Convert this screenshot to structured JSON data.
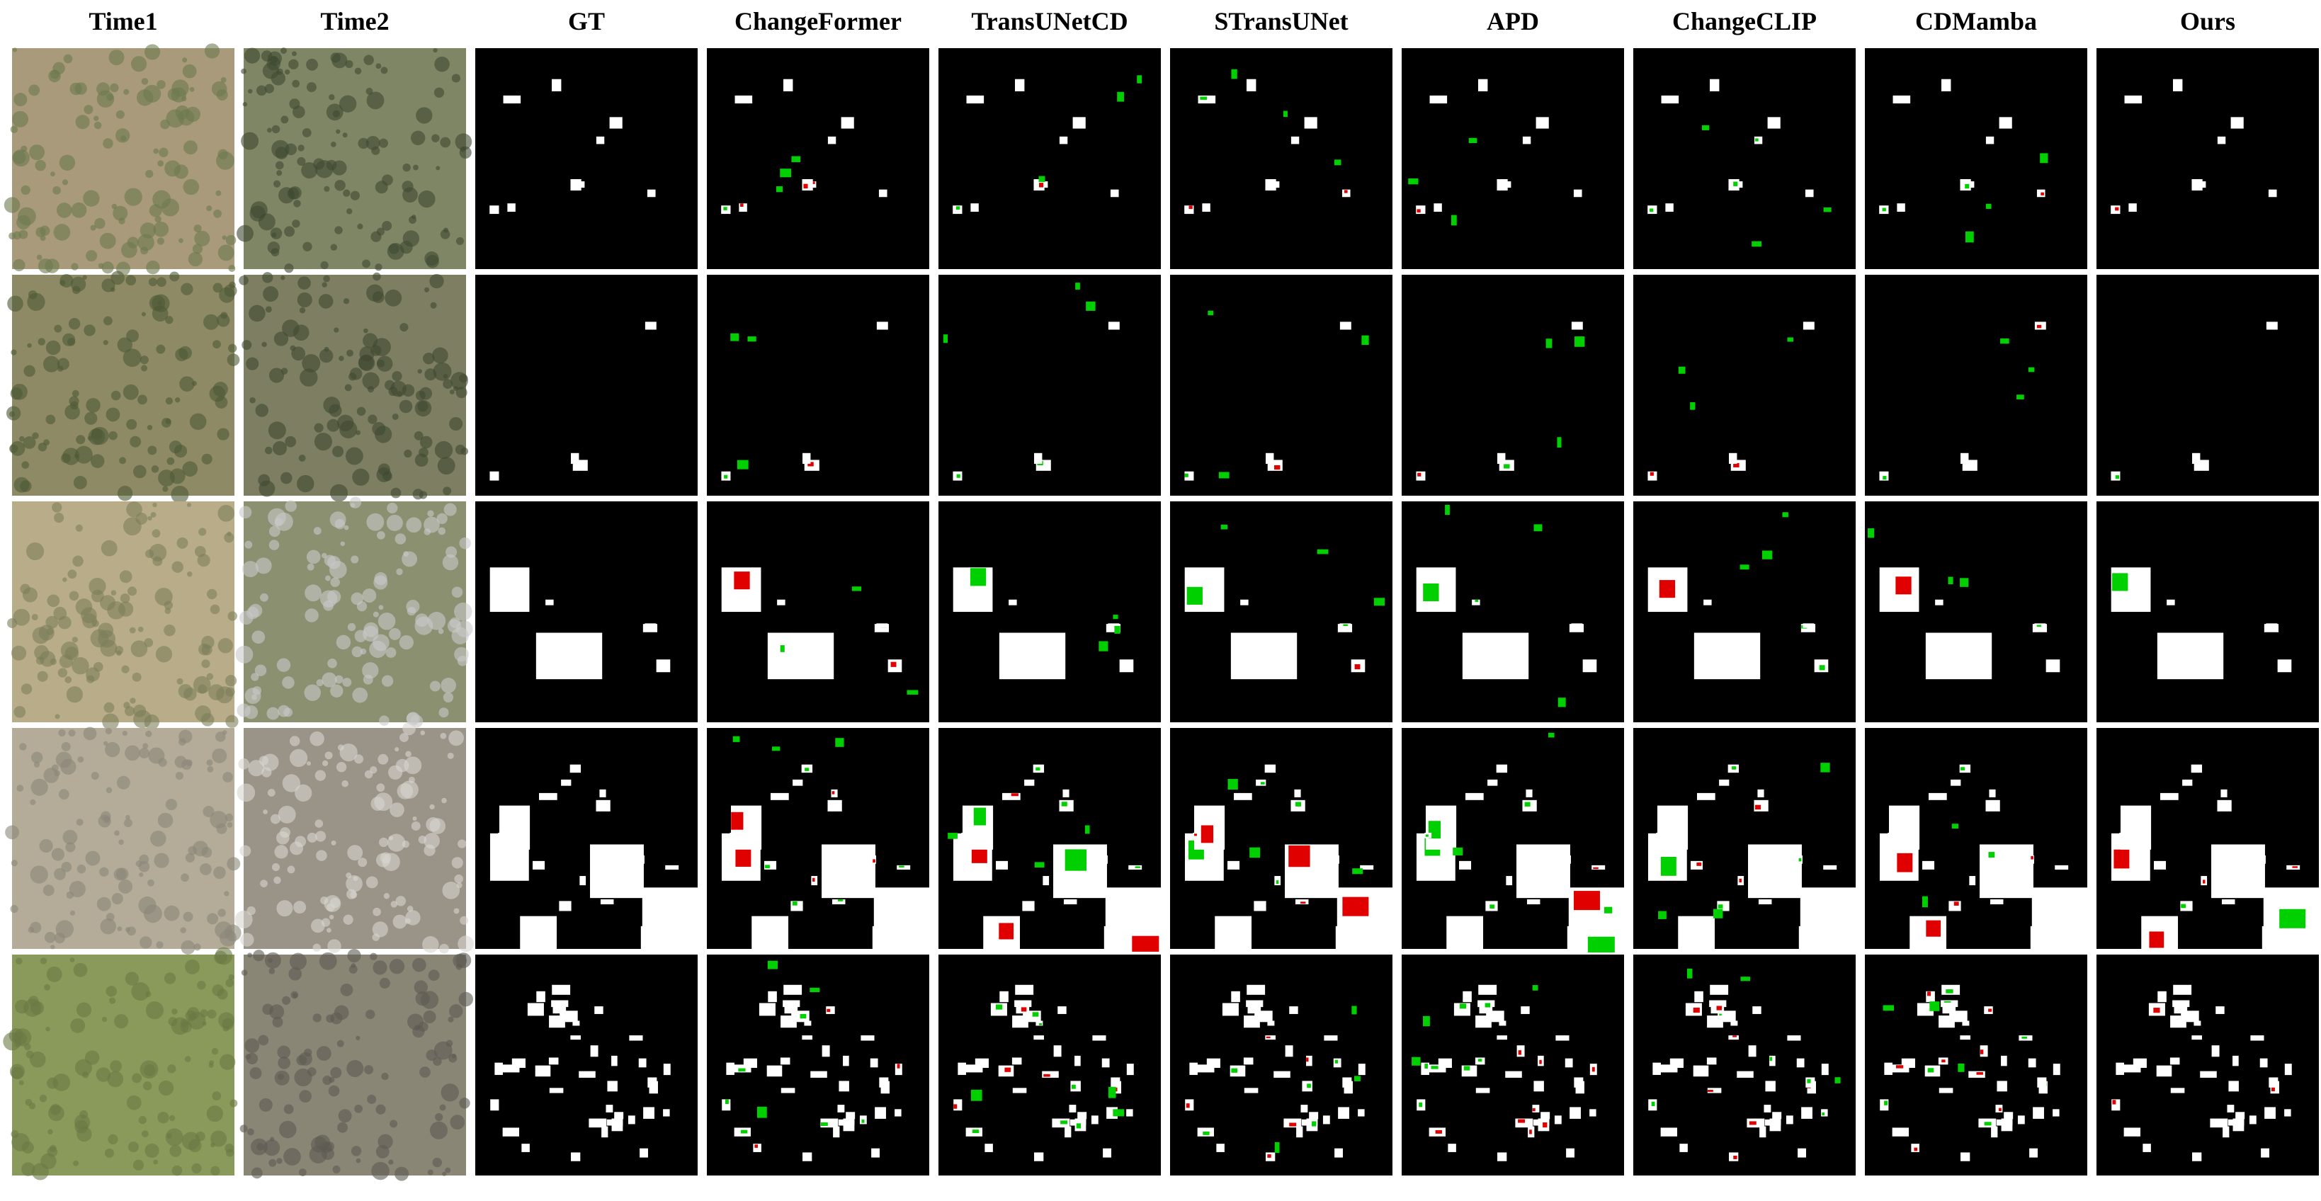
{
  "columns": [
    "Time1",
    "Time2",
    "GT",
    "ChangeFormer",
    "TransUNetCD",
    "STransUNet",
    "APD",
    "ChangeCLIP",
    "CDMamba",
    "Ours"
  ]
}
